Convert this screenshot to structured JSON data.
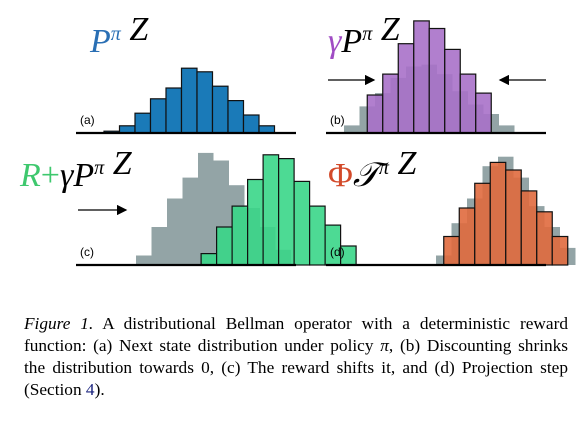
{
  "colors": {
    "blue": "#1a7ab8",
    "purple": "#a871c9",
    "green": "#3ad688",
    "orange": "#e06a3e",
    "gray": "#93a4a6",
    "bar_stroke": "#111111"
  },
  "panels": [
    {
      "id": "a",
      "label": "(a)",
      "title_parts": [
        {
          "text": "P",
          "style": "italic",
          "color": "#2a6fb4"
        },
        {
          "text": "π",
          "style": "italic-sup",
          "color": "#2a6fb4"
        },
        {
          "text": " Z",
          "style": "italic",
          "color": "#000000"
        }
      ],
      "gray": [],
      "main": [
        2,
        8,
        22,
        38,
        50,
        72,
        68,
        52,
        36,
        20,
        8
      ],
      "main_start": 0,
      "main_color": "#1a7ab8",
      "arrows": []
    },
    {
      "id": "b",
      "label": "(b)",
      "title_parts": [
        {
          "text": "γ",
          "style": "italic",
          "color": "#a04cc4"
        },
        {
          "text": "P",
          "style": "italic",
          "color": "#000000"
        },
        {
          "text": "π",
          "style": "italic-sup",
          "color": "#000000"
        },
        {
          "text": " Z",
          "style": "italic",
          "color": "#000000"
        }
      ],
      "gray": [
        8,
        28,
        42,
        58,
        70,
        72,
        62,
        44,
        30,
        20,
        8
      ],
      "main": [
        40,
        62,
        94,
        118,
        110,
        88,
        62,
        42
      ],
      "main_start": 1.5,
      "main_color": "#a871c9",
      "arrows": [
        "right-from-left",
        "left-from-right"
      ]
    },
    {
      "id": "c",
      "label": "(c)",
      "title_parts": [
        {
          "text": "R",
          "style": "italic",
          "color": "#3ec86e"
        },
        {
          "text": "+",
          "style": "normal",
          "color": "#3ec86e"
        },
        {
          "text": "γ",
          "style": "italic",
          "color": "#000000"
        },
        {
          "text": "P",
          "style": "italic",
          "color": "#000000"
        },
        {
          "text": "π",
          "style": "italic-sup",
          "color": "#000000"
        },
        {
          "text": " Z",
          "style": "italic",
          "color": "#000000"
        }
      ],
      "gray": [
        10,
        40,
        70,
        92,
        118,
        110,
        84,
        60,
        40,
        16
      ],
      "main": [
        12,
        40,
        62,
        90,
        116,
        112,
        88,
        62,
        42,
        20
      ],
      "main_start": 4.2,
      "main_color": "#3ad688",
      "arrows": [
        "right-from-left"
      ]
    },
    {
      "id": "d",
      "label": "(d)",
      "title_parts": [
        {
          "text": "Φ",
          "style": "normal",
          "color": "#d34a2a"
        },
        {
          "text": "𝒯",
          "style": "italic",
          "color": "#000000"
        },
        {
          "text": "π",
          "style": "italic-sup",
          "color": "#000000"
        },
        {
          "text": " Z",
          "style": "italic",
          "color": "#000000"
        }
      ],
      "gray": [
        10,
        44,
        70,
        104,
        114,
        92,
        62,
        40,
        18
      ],
      "main": [
        30,
        60,
        86,
        108,
        100,
        78,
        56,
        30
      ],
      "main_start": 0.5,
      "main_color": "#e06a3e",
      "arrows": []
    }
  ],
  "caption": {
    "figure_label": "Figure 1.",
    "segments": [
      {
        "text": " A distributional Bellman operator with a deterministic reward function: (a) Next state distribution under policy ",
        "kind": "text"
      },
      {
        "text": "π",
        "kind": "math"
      },
      {
        "text": ", (b) Discounting shrinks the distribution towards 0, (c) The reward shifts it, and (d) Projection step (Section ",
        "kind": "text"
      },
      {
        "text": "4",
        "kind": "ref"
      },
      {
        "text": ").",
        "kind": "text"
      }
    ]
  }
}
